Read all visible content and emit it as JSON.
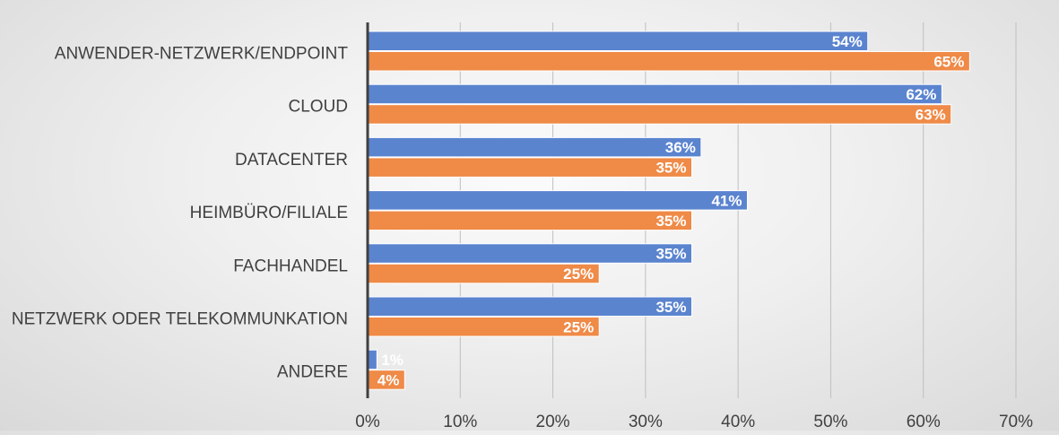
{
  "chart_data": {
    "type": "bar",
    "orientation": "horizontal",
    "categories": [
      "ANWENDER-NETZWERK/ENDPOINT",
      "CLOUD",
      "DATACENTER",
      "HEIMBÜRO/FILIALE",
      "FACHHANDEL",
      "NETZWERK ODER TELEKOMMUNKATION",
      "ANDERE"
    ],
    "series": [
      {
        "color": "#5b84cf",
        "values": [
          54,
          62,
          36,
          41,
          35,
          35,
          1
        ],
        "labels": [
          "54%",
          "62%",
          "36%",
          "41%",
          "35%",
          "35%",
          "1%"
        ]
      },
      {
        "color": "#ef8a47",
        "values": [
          65,
          63,
          35,
          35,
          25,
          25,
          4
        ],
        "labels": [
          "65%",
          "63%",
          "35%",
          "35%",
          "25%",
          "25%",
          "4%"
        ]
      }
    ],
    "xlim": [
      0,
      70
    ],
    "xticks": [
      0,
      10,
      20,
      30,
      40,
      50,
      60,
      70
    ],
    "xtick_labels": [
      "0%",
      "10%",
      "20%",
      "30%",
      "40%",
      "50%",
      "60%",
      "70%"
    ],
    "grid": "vertical",
    "legend": "none",
    "title": "",
    "xlabel": "",
    "ylabel": ""
  }
}
